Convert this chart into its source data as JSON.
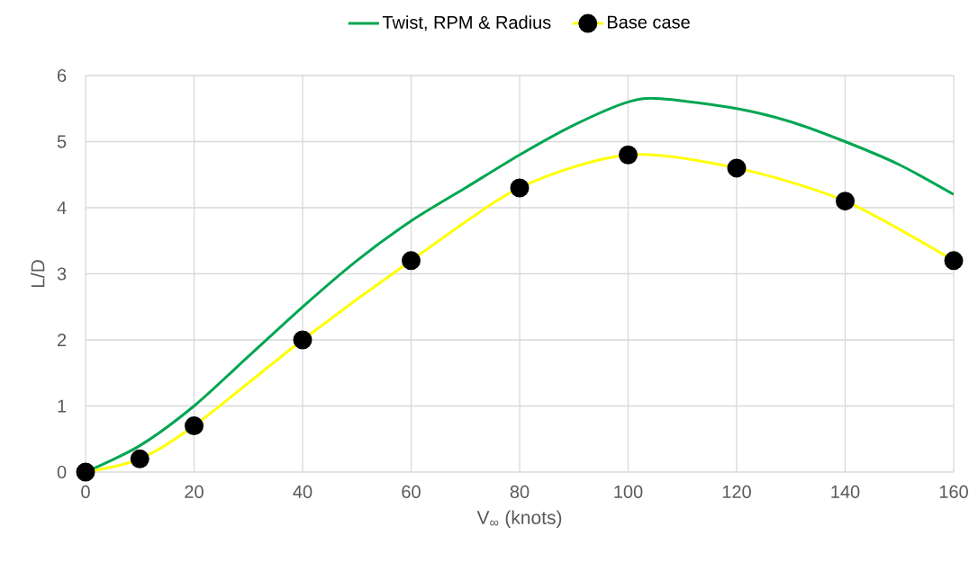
{
  "chart_data": {
    "type": "line",
    "xlabel": "V$_{∞}$ (knots)",
    "ylabel": "L/D",
    "xlim": [
      0,
      160
    ],
    "ylim": [
      0,
      6
    ],
    "xticks": [
      0,
      20,
      40,
      60,
      80,
      100,
      120,
      140,
      160
    ],
    "yticks": [
      0,
      1,
      2,
      3,
      4,
      5,
      6
    ],
    "grid": true,
    "legend": "top",
    "series": [
      {
        "name": "Twist, RPM & Radius",
        "color": "#00a651",
        "marker": "none",
        "x": [
          0,
          10,
          20,
          30,
          40,
          50,
          60,
          70,
          80,
          90,
          100,
          106,
          120,
          130,
          140,
          150,
          160
        ],
        "values": [
          0,
          0.4,
          1.0,
          1.75,
          2.5,
          3.2,
          3.8,
          4.3,
          4.8,
          5.25,
          5.6,
          5.65,
          5.5,
          5.3,
          5.0,
          4.65,
          4.2
        ]
      },
      {
        "name": "Base case",
        "color": "#ffff00",
        "marker": "circle",
        "x": [
          0,
          10,
          20,
          40,
          60,
          80,
          100,
          120,
          140,
          160
        ],
        "values": [
          0,
          0.2,
          0.7,
          2.0,
          3.2,
          4.3,
          4.8,
          4.6,
          4.1,
          3.2
        ]
      }
    ]
  }
}
